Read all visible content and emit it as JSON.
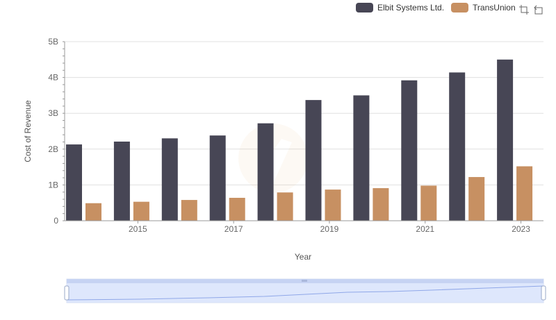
{
  "colors": {
    "elbit": "#474655",
    "transunion": "#c79062",
    "zoom_fill": "#d6e1fb",
    "zoom_border": "#b7c6ea"
  },
  "toolbox": {
    "icons": [
      "zoom-icon",
      "zoom-reset-icon"
    ]
  },
  "chart_data": {
    "type": "bar",
    "categories": [
      "2014",
      "2015",
      "2016",
      "2017",
      "2018",
      "2019",
      "2020",
      "2021",
      "2022",
      "2023"
    ],
    "x_tick_labels": [
      "2015",
      "2017",
      "2019",
      "2021",
      "2023"
    ],
    "xlabel": "Year",
    "ylabel": "Cost of Revenue",
    "ylim": [
      0,
      5000000000
    ],
    "y_tick_labels": [
      "0",
      "1B",
      "2B",
      "3B",
      "4B",
      "5B"
    ],
    "y_ticks": [
      0,
      1000000000,
      2000000000,
      3000000000,
      4000000000,
      5000000000
    ],
    "grid": true,
    "legend_position": "top-right",
    "series": [
      {
        "name": "Elbit Systems Ltd.",
        "color": "#474655",
        "values": [
          2130000000,
          2210000000,
          2300000000,
          2380000000,
          2720000000,
          3370000000,
          3500000000,
          3920000000,
          4140000000,
          4500000000
        ]
      },
      {
        "name": "TransUnion",
        "color": "#c79062",
        "values": [
          490000000,
          530000000,
          580000000,
          640000000,
          790000000,
          870000000,
          910000000,
          980000000,
          1220000000,
          1520000000
        ]
      }
    ]
  }
}
